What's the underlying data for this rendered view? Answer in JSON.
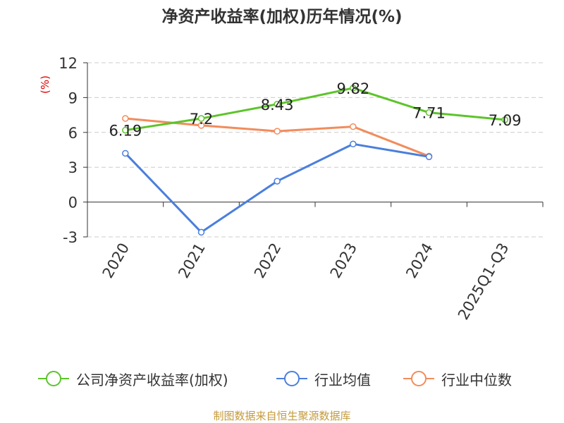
{
  "chart_data": {
    "type": "line",
    "title": "净资产收益率(加权)历年情况(%)",
    "unit_label": "(%)",
    "categories": [
      "2020",
      "2021",
      "2022",
      "2023",
      "2024",
      "2025Q1-Q3"
    ],
    "ylim": [
      -3,
      12
    ],
    "yticks": [
      -3,
      0,
      3,
      6,
      9,
      12
    ],
    "grid": true,
    "legend_position": "bottom",
    "series": [
      {
        "name": "公司净资产收益率(加权)",
        "color": "#5cc42a",
        "values": [
          6.19,
          7.2,
          8.43,
          9.82,
          7.71,
          7.09
        ],
        "labels": [
          "6.19",
          "7.2",
          "8.43",
          "9.82",
          "7.71",
          "7.09"
        ]
      },
      {
        "name": "行业均值",
        "color": "#4a7fdc",
        "values": [
          4.2,
          -2.6,
          1.8,
          5.0,
          3.9,
          null
        ]
      },
      {
        "name": "行业中位数",
        "color": "#f28c5c",
        "values": [
          7.2,
          6.6,
          6.1,
          6.5,
          3.95,
          null
        ]
      }
    ]
  },
  "source": "制图数据来自恒生聚源数据库"
}
